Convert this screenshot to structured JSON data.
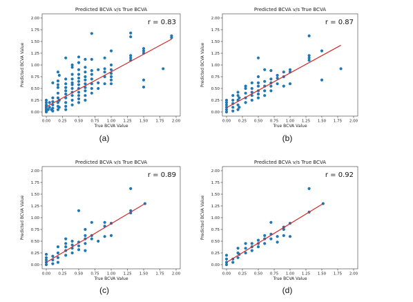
{
  "chart_data": [
    {
      "type": "scatter",
      "title": "Predicted BCVA v/s True BCVA",
      "xlabel": "True BCVA Value",
      "ylabel": "Predicted BCVA Value",
      "xlim": [
        0,
        2
      ],
      "ylim": [
        0,
        2
      ],
      "xticks": [
        "0.00",
        "0.25",
        "0.50",
        "0.75",
        "1.00",
        "1.25",
        "1.50",
        "1.75",
        "2.00"
      ],
      "yticks": [
        "0.00",
        "0.25",
        "0.50",
        "0.75",
        "1.00",
        "1.25",
        "1.50",
        "1.75",
        "2.00"
      ],
      "annotation": "r = 0.83",
      "caption": "(a)",
      "fit_line": {
        "x": [
          0,
          1.93
        ],
        "y": [
          0.11,
          1.55
        ],
        "color": "#d62728"
      },
      "marker_color": "#1f77b4",
      "points": [
        [
          0,
          0
        ],
        [
          0,
          0.03
        ],
        [
          0,
          0.06
        ],
        [
          0,
          0.09
        ],
        [
          0,
          0.12
        ],
        [
          0,
          0.15
        ],
        [
          0,
          0.2
        ],
        [
          0,
          0.25
        ],
        [
          0.03,
          0.05
        ],
        [
          0.05,
          0.1
        ],
        [
          0.05,
          0.2
        ],
        [
          0.08,
          0.05
        ],
        [
          0.1,
          0.02
        ],
        [
          0.1,
          0.08
        ],
        [
          0.1,
          0.15
        ],
        [
          0.1,
          0.22
        ],
        [
          0.1,
          0.3
        ],
        [
          0.1,
          0.62
        ],
        [
          0.18,
          0.05
        ],
        [
          0.18,
          0.12
        ],
        [
          0.18,
          0.2
        ],
        [
          0.18,
          0.3
        ],
        [
          0.18,
          0.4
        ],
        [
          0.18,
          0.52
        ],
        [
          0.18,
          0.58
        ],
        [
          0.18,
          0.66
        ],
        [
          0.18,
          0.85
        ],
        [
          0.2,
          0.1
        ],
        [
          0.2,
          0.25
        ],
        [
          0.2,
          0.78
        ],
        [
          0.3,
          0.05
        ],
        [
          0.3,
          0.12
        ],
        [
          0.3,
          0.2
        ],
        [
          0.3,
          0.3
        ],
        [
          0.3,
          0.38
        ],
        [
          0.3,
          0.45
        ],
        [
          0.3,
          0.52
        ],
        [
          0.3,
          0.6
        ],
        [
          0.3,
          0.7
        ],
        [
          0.3,
          1.15
        ],
        [
          0.4,
          0.15
        ],
        [
          0.4,
          0.25
        ],
        [
          0.4,
          0.35
        ],
        [
          0.4,
          0.42
        ],
        [
          0.4,
          0.5
        ],
        [
          0.4,
          0.58
        ],
        [
          0.4,
          0.62
        ],
        [
          0.4,
          0.7
        ],
        [
          0.4,
          0.8
        ],
        [
          0.4,
          0.95
        ],
        [
          0.4,
          1.0
        ],
        [
          0.5,
          0.2
        ],
        [
          0.5,
          0.28
        ],
        [
          0.5,
          0.35
        ],
        [
          0.5,
          0.42
        ],
        [
          0.5,
          0.5
        ],
        [
          0.5,
          0.58
        ],
        [
          0.5,
          0.65
        ],
        [
          0.5,
          0.72
        ],
        [
          0.5,
          0.8
        ],
        [
          0.5,
          0.9
        ],
        [
          0.5,
          1.05
        ],
        [
          0.5,
          1.17
        ],
        [
          0.6,
          0.25
        ],
        [
          0.6,
          0.35
        ],
        [
          0.6,
          0.45
        ],
        [
          0.6,
          0.52
        ],
        [
          0.6,
          0.6
        ],
        [
          0.6,
          0.68
        ],
        [
          0.6,
          0.75
        ],
        [
          0.6,
          0.85
        ],
        [
          0.6,
          0.95
        ],
        [
          0.6,
          1.12
        ],
        [
          0.7,
          0.4
        ],
        [
          0.7,
          0.5
        ],
        [
          0.7,
          0.6
        ],
        [
          0.7,
          0.7
        ],
        [
          0.7,
          0.8
        ],
        [
          0.7,
          0.88
        ],
        [
          0.7,
          1.12
        ],
        [
          0.7,
          1.67
        ],
        [
          0.8,
          0.5
        ],
        [
          0.8,
          0.62
        ],
        [
          0.8,
          0.9
        ],
        [
          0.9,
          0.6
        ],
        [
          0.9,
          0.75
        ],
        [
          0.9,
          0.85
        ],
        [
          0.9,
          0.92
        ],
        [
          0.9,
          1.15
        ],
        [
          1.0,
          0.6
        ],
        [
          1.0,
          0.68
        ],
        [
          1.0,
          0.75
        ],
        [
          1.0,
          0.82
        ],
        [
          1.0,
          0.9
        ],
        [
          1.0,
          1.0
        ],
        [
          1.0,
          1.3
        ],
        [
          1.3,
          1.1
        ],
        [
          1.3,
          1.15
        ],
        [
          1.3,
          1.2
        ],
        [
          1.3,
          1.6
        ],
        [
          1.3,
          1.68
        ],
        [
          1.5,
          0.53
        ],
        [
          1.5,
          0.68
        ],
        [
          1.5,
          1.25
        ],
        [
          1.5,
          1.3
        ],
        [
          1.5,
          1.35
        ],
        [
          1.8,
          0.92
        ],
        [
          1.93,
          1.58
        ],
        [
          1.93,
          1.62
        ]
      ]
    },
    {
      "type": "scatter",
      "title": "Predicted BCVA v/s True BCVA",
      "xlabel": "True BCVA Value",
      "ylabel": "Predicted BCVA Value",
      "xlim": [
        0,
        2
      ],
      "ylim": [
        0,
        2
      ],
      "xticks": [
        "0.00",
        "0.25",
        "0.50",
        "0.75",
        "1.00",
        "1.25",
        "1.50",
        "1.75",
        "2.00"
      ],
      "yticks": [
        "0.00",
        "0.25",
        "0.50",
        "0.75",
        "1.00",
        "1.25",
        "1.50",
        "1.75",
        "2.00"
      ],
      "annotation": "r = 0.87",
      "caption": "(b)",
      "fit_line": {
        "x": [
          0,
          1.8
        ],
        "y": [
          0.09,
          1.42
        ],
        "color": "#d62728"
      },
      "marker_color": "#1f77b4",
      "points": [
        [
          0,
          0
        ],
        [
          0,
          0.05
        ],
        [
          0,
          0.1
        ],
        [
          0,
          0.15
        ],
        [
          0,
          0.2
        ],
        [
          0,
          0.25
        ],
        [
          0.1,
          0.02
        ],
        [
          0.1,
          0.1
        ],
        [
          0.1,
          0.18
        ],
        [
          0.1,
          0.25
        ],
        [
          0.1,
          0.35
        ],
        [
          0.18,
          0.05
        ],
        [
          0.18,
          0.15
        ],
        [
          0.18,
          0.25
        ],
        [
          0.18,
          0.35
        ],
        [
          0.18,
          0.42
        ],
        [
          0.2,
          0.1
        ],
        [
          0.2,
          0.3
        ],
        [
          0.3,
          0.2
        ],
        [
          0.3,
          0.3
        ],
        [
          0.3,
          0.4
        ],
        [
          0.3,
          0.5
        ],
        [
          0.3,
          0.55
        ],
        [
          0.4,
          0.25
        ],
        [
          0.4,
          0.35
        ],
        [
          0.4,
          0.42
        ],
        [
          0.4,
          0.5
        ],
        [
          0.4,
          0.62
        ],
        [
          0.5,
          0.3
        ],
        [
          0.5,
          0.38
        ],
        [
          0.5,
          0.45
        ],
        [
          0.5,
          0.55
        ],
        [
          0.5,
          0.62
        ],
        [
          0.5,
          0.75
        ],
        [
          0.5,
          1.15
        ],
        [
          0.6,
          0.35
        ],
        [
          0.6,
          0.45
        ],
        [
          0.6,
          0.55
        ],
        [
          0.6,
          0.65
        ],
        [
          0.6,
          0.9
        ],
        [
          0.7,
          0.45
        ],
        [
          0.7,
          0.55
        ],
        [
          0.7,
          0.62
        ],
        [
          0.7,
          0.7
        ],
        [
          0.7,
          0.88
        ],
        [
          0.8,
          0.6
        ],
        [
          0.8,
          0.72
        ],
        [
          0.8,
          0.78
        ],
        [
          0.9,
          0.55
        ],
        [
          0.9,
          0.75
        ],
        [
          0.9,
          0.85
        ],
        [
          1.0,
          0.6
        ],
        [
          1.0,
          0.85
        ],
        [
          1.0,
          0.9
        ],
        [
          1.3,
          1.1
        ],
        [
          1.3,
          1.15
        ],
        [
          1.3,
          1.2
        ],
        [
          1.3,
          1.62
        ],
        [
          1.5,
          0.68
        ],
        [
          1.5,
          1.3
        ],
        [
          1.8,
          0.92
        ]
      ]
    },
    {
      "type": "scatter",
      "title": "Predicted BCVA v/s True BCVA",
      "xlabel": "True BCVA Value",
      "ylabel": "Predicted BCVA Value",
      "xlim": [
        0,
        2
      ],
      "ylim": [
        0,
        2
      ],
      "xticks": [
        "0.00",
        "0.25",
        "0.50",
        "0.75",
        "1.00",
        "1.25",
        "1.50",
        "1.75",
        "2.00"
      ],
      "yticks": [
        "0.00",
        "0.25",
        "0.50",
        "0.75",
        "1.00",
        "1.25",
        "1.50",
        "1.75",
        "2.00"
      ],
      "annotation": "r = 0.89",
      "caption": "(c)",
      "fit_line": {
        "x": [
          0,
          1.52
        ],
        "y": [
          0.05,
          1.3
        ],
        "color": "#d62728"
      },
      "marker_color": "#1f77b4",
      "points": [
        [
          0,
          0
        ],
        [
          0,
          0.05
        ],
        [
          0,
          0.1
        ],
        [
          0,
          0.15
        ],
        [
          0,
          0.22
        ],
        [
          0.1,
          0.02
        ],
        [
          0.1,
          0.1
        ],
        [
          0.1,
          0.18
        ],
        [
          0.18,
          0.05
        ],
        [
          0.18,
          0.15
        ],
        [
          0.18,
          0.25
        ],
        [
          0.18,
          0.38
        ],
        [
          0.3,
          0.2
        ],
        [
          0.3,
          0.3
        ],
        [
          0.3,
          0.38
        ],
        [
          0.3,
          0.45
        ],
        [
          0.3,
          0.55
        ],
        [
          0.4,
          0.25
        ],
        [
          0.4,
          0.35
        ],
        [
          0.4,
          0.42
        ],
        [
          0.4,
          0.5
        ],
        [
          0.5,
          0.32
        ],
        [
          0.5,
          0.4
        ],
        [
          0.5,
          0.48
        ],
        [
          0.5,
          1.15
        ],
        [
          0.6,
          0.3
        ],
        [
          0.6,
          0.45
        ],
        [
          0.6,
          0.55
        ],
        [
          0.6,
          0.62
        ],
        [
          0.6,
          0.75
        ],
        [
          0.7,
          0.55
        ],
        [
          0.7,
          0.62
        ],
        [
          0.7,
          0.9
        ],
        [
          0.8,
          0.5
        ],
        [
          0.9,
          0.6
        ],
        [
          0.9,
          0.82
        ],
        [
          0.9,
          0.9
        ],
        [
          1.0,
          0.62
        ],
        [
          1.0,
          0.88
        ],
        [
          1.3,
          1.1
        ],
        [
          1.3,
          1.15
        ],
        [
          1.3,
          1.62
        ],
        [
          1.52,
          1.3
        ]
      ]
    },
    {
      "type": "scatter",
      "title": "Predicted BCVA v/s True BCVA",
      "xlabel": "True BCVA Value",
      "ylabel": "Predicted BCVA Value",
      "xlim": [
        0,
        2
      ],
      "ylim": [
        0,
        2
      ],
      "xticks": [
        "0.00",
        "0.25",
        "0.50",
        "0.75",
        "1.00",
        "1.25",
        "1.50",
        "1.75",
        "2.00"
      ],
      "yticks": [
        "0.00",
        "0.25",
        "0.50",
        "0.75",
        "1.00",
        "1.25",
        "1.50",
        "1.75",
        "2.00"
      ],
      "annotation": "r = 0.92",
      "caption": "(d)",
      "fit_line": {
        "x": [
          0,
          1.52
        ],
        "y": [
          0.05,
          1.3
        ],
        "color": "#d62728"
      },
      "marker_color": "#1f77b4",
      "points": [
        [
          0,
          0
        ],
        [
          0,
          0.05
        ],
        [
          0,
          0.12
        ],
        [
          0,
          0.2
        ],
        [
          0.1,
          0.05
        ],
        [
          0.1,
          0.12
        ],
        [
          0.18,
          0.15
        ],
        [
          0.18,
          0.25
        ],
        [
          0.18,
          0.35
        ],
        [
          0.2,
          0.22
        ],
        [
          0.3,
          0.25
        ],
        [
          0.3,
          0.35
        ],
        [
          0.3,
          0.45
        ],
        [
          0.4,
          0.3
        ],
        [
          0.4,
          0.38
        ],
        [
          0.4,
          0.45
        ],
        [
          0.5,
          0.38
        ],
        [
          0.5,
          0.45
        ],
        [
          0.5,
          0.52
        ],
        [
          0.6,
          0.45
        ],
        [
          0.6,
          0.55
        ],
        [
          0.6,
          0.62
        ],
        [
          0.7,
          0.55
        ],
        [
          0.7,
          0.65
        ],
        [
          0.7,
          0.9
        ],
        [
          0.8,
          0.48
        ],
        [
          0.8,
          0.6
        ],
        [
          0.9,
          0.62
        ],
        [
          0.9,
          0.75
        ],
        [
          0.9,
          0.8
        ],
        [
          1.0,
          0.6
        ],
        [
          1.0,
          0.88
        ],
        [
          1.3,
          1.12
        ],
        [
          1.3,
          1.62
        ],
        [
          1.52,
          1.3
        ]
      ]
    }
  ]
}
